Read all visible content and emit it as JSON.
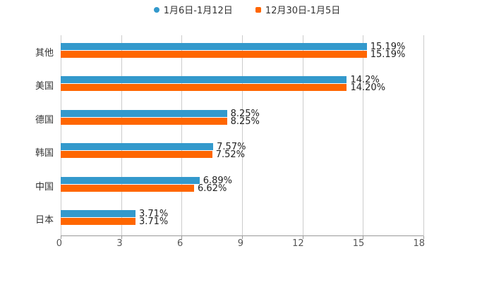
{
  "legend": [
    {
      "label": "1月6日-1月12日",
      "color": "#3399cc"
    },
    {
      "label": "12月30日-1月5日",
      "color": "#ff6600"
    }
  ],
  "chart_data": {
    "type": "bar",
    "orientation": "horizontal",
    "title": "",
    "xlabel": "",
    "ylabel": "",
    "xlim": [
      0,
      18
    ],
    "xticks": [
      "0",
      "3",
      "6",
      "9",
      "12",
      "15",
      "18"
    ],
    "grid": true,
    "legend_position": "top",
    "categories": [
      "其他",
      "美国",
      "德国",
      "韩国",
      "中国",
      "日本"
    ],
    "series": [
      {
        "name": "1月6日-1月12日",
        "color": "#3399cc",
        "values": [
          15.19,
          14.2,
          8.25,
          7.57,
          6.89,
          3.71
        ],
        "labels": [
          "15.19%",
          "14.2%",
          "8.25%",
          "7.57%",
          "6.89%",
          "3.71%"
        ]
      },
      {
        "name": "12月30日-1月5日",
        "color": "#ff6600",
        "values": [
          15.19,
          14.2,
          8.25,
          7.52,
          6.62,
          3.71
        ],
        "labels": [
          "15.19%",
          "14.20%",
          "8.25%",
          "7.52%",
          "6.62%",
          "3.71%"
        ]
      }
    ]
  }
}
